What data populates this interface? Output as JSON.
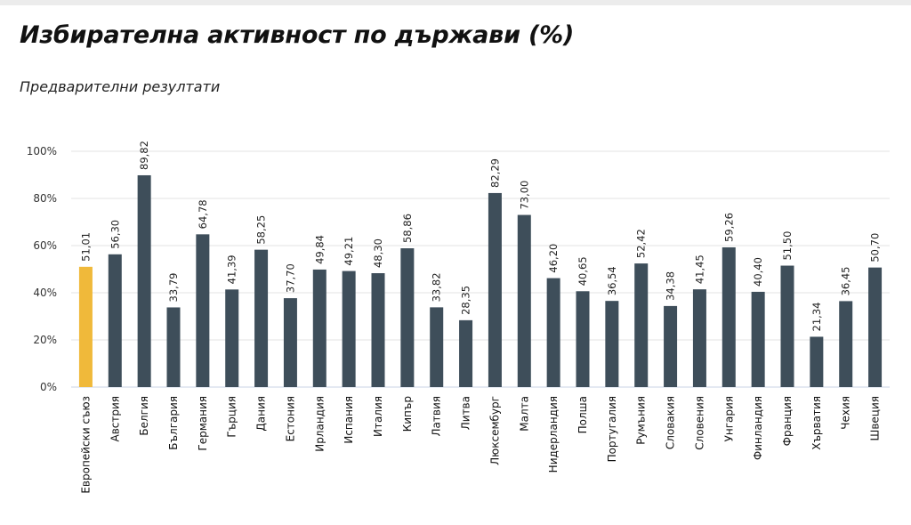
{
  "header": {
    "title": "Избирателна активност по държави (%)",
    "subtitle": "Предварителни резултати"
  },
  "colors": {
    "highlight": "#F0B93A",
    "bar": "#3E4E5A",
    "grid": "#E3E3E3",
    "axis": "#C9D3E6"
  },
  "chart_data": {
    "type": "bar",
    "title": "Избирателна активност по държави (%)",
    "subtitle": "Предварителни резултати",
    "xlabel": "",
    "ylabel": "",
    "ylim": [
      0,
      100
    ],
    "yticks": [
      "0%",
      "20%",
      "40%",
      "60%",
      "80%",
      "100%"
    ],
    "grid": true,
    "highlight_category": "Европейски съюз",
    "categories": [
      "Европейски съюз",
      "Австрия",
      "Белгия",
      "България",
      "Германия",
      "Гърция",
      "Дания",
      "Естония",
      "Ирландия",
      "Испания",
      "Италия",
      "Кипър",
      "Латвия",
      "Литва",
      "Люксембург",
      "Малта",
      "Нидерландия",
      "Полша",
      "Португалия",
      "Румъния",
      "Словакия",
      "Словения",
      "Унгария",
      "Финландия",
      "Франция",
      "Хърватия",
      "Чехия",
      "Швеция"
    ],
    "values": [
      51.01,
      56.3,
      89.82,
      33.79,
      64.78,
      41.39,
      58.25,
      37.7,
      49.84,
      49.21,
      48.3,
      58.86,
      33.82,
      28.35,
      82.29,
      73.0,
      46.2,
      40.65,
      36.54,
      52.42,
      34.38,
      41.45,
      59.26,
      40.4,
      51.5,
      21.34,
      36.45,
      50.7
    ],
    "value_labels": [
      "51,01",
      "56,30",
      "89,82",
      "33,79",
      "64,78",
      "41,39",
      "58,25",
      "37,70",
      "49,84",
      "49,21",
      "48,30",
      "58,86",
      "33,82",
      "28,35",
      "82,29",
      "73,00",
      "46,20",
      "40,65",
      "36,54",
      "52,42",
      "34,38",
      "41,45",
      "59,26",
      "40,40",
      "51,50",
      "21,34",
      "36,45",
      "50,70"
    ]
  }
}
